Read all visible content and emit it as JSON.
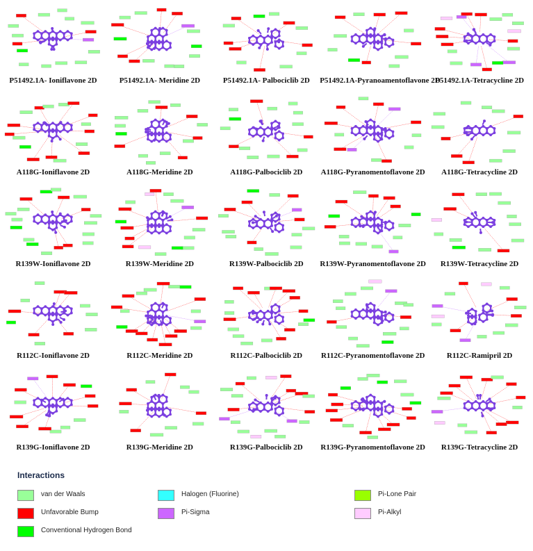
{
  "panels": [
    {
      "caption": "P51492.1A- Ioniflavone 2D",
      "kind": "iso"
    },
    {
      "caption": "P51492.1A- Meridine 2D",
      "kind": "mer"
    },
    {
      "caption": "P51492.1A- Palbociclib 2D",
      "kind": "pal"
    },
    {
      "caption": "P51492.1A-Pyranoamentoflavone 2D",
      "kind": "pyr"
    },
    {
      "caption": "P51492.1A-Tetracycline 2D",
      "kind": "tet"
    },
    {
      "caption": "A118G-Ioniflavone 2D",
      "kind": "iso"
    },
    {
      "caption": "A118G-Meridine 2D",
      "kind": "mer"
    },
    {
      "caption": "A118G-Palbociclib 2D",
      "kind": "pal"
    },
    {
      "caption": "A118G-Pyranomentoflavone 2D",
      "kind": "pyr"
    },
    {
      "caption": "A118G-Tetracycline 2D",
      "kind": "tet"
    },
    {
      "caption": "R139W-Ioniflavone 2D",
      "kind": "iso"
    },
    {
      "caption": "R139W-Meridine 2D",
      "kind": "mer"
    },
    {
      "caption": "R139W-Palbociclib 2D",
      "kind": "pal"
    },
    {
      "caption": "R139W-Pyranomentoflavone 2D",
      "kind": "pyr"
    },
    {
      "caption": "R139W-Tetracycline 2D",
      "kind": "tet"
    },
    {
      "caption": "R112C-Ioniflavone 2D",
      "kind": "iso"
    },
    {
      "caption": "R112C-Meridine 2D",
      "kind": "mer"
    },
    {
      "caption": "R112C-Palbociclib 2D",
      "kind": "pal"
    },
    {
      "caption": "R112C-Pyranomentoflavone 2D",
      "kind": "pyr"
    },
    {
      "caption": "R112C-Ramipril 2D",
      "kind": "ram"
    },
    {
      "caption": "R139G-Ioniflavone 2D",
      "kind": "iso"
    },
    {
      "caption": "R139G-Meridine 2D",
      "kind": "mer"
    },
    {
      "caption": "R139G-Palbociclib 2D",
      "kind": "pal"
    },
    {
      "caption": "R139G-Pyranomentoflavone 2D",
      "kind": "pyr"
    },
    {
      "caption": "R139G-Tetracycline 2D",
      "kind": "tet"
    }
  ],
  "legend": {
    "title": "Interactions",
    "items": [
      {
        "label": "van der Waals",
        "color": "#99ff99"
      },
      {
        "label": "Unfavorable Bump",
        "color": "#ff0000"
      },
      {
        "label": "Conventional Hydrogen Bond",
        "color": "#00ff00"
      },
      {
        "label": "Halogen (Fluorine)",
        "color": "#33ffff"
      },
      {
        "label": "Pi-Sigma",
        "color": "#cc66ff"
      },
      {
        "label": "Pi-Lone Pair",
        "color": "#99ff00"
      },
      {
        "label": "Pi-Alkyl",
        "color": "#ffccff"
      }
    ]
  },
  "colors": {
    "ligand": "#7b3fe0",
    "vdw": "#99ff99",
    "bump": "#ff0000",
    "hbond": "#00ff00",
    "pisigma": "#cc66ff",
    "pialkyl": "#ffccff"
  }
}
